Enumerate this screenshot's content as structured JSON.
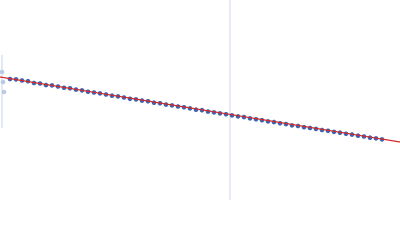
{
  "chart_data": {
    "type": "scatter",
    "xlim": [
      0,
      400
    ],
    "ylim": [
      0,
      200
    ],
    "series": [
      {
        "color": "#3a64b0",
        "x": [
          10,
          16,
          22,
          28,
          34,
          40,
          46,
          52,
          58,
          64,
          70,
          76,
          82,
          88,
          94,
          100,
          106,
          112,
          118,
          124,
          130,
          136,
          142,
          148,
          154,
          160,
          166,
          172,
          178,
          184,
          190,
          196,
          202,
          208,
          214,
          220,
          226,
          232,
          238,
          244,
          250,
          256,
          262,
          268,
          274,
          280,
          286,
          292,
          298,
          304,
          310,
          316,
          322,
          328,
          334,
          340,
          346,
          352,
          358,
          364,
          370,
          376,
          382
        ],
        "values": [
          121.0,
          120.6,
          119.5,
          118.8,
          117.0,
          116.5,
          114.9,
          114.6,
          113.5,
          112.2,
          111.7,
          110.4,
          109.6,
          108.2,
          107.5,
          106.6,
          105.5,
          104.3,
          103.6,
          102.5,
          101.2,
          100.6,
          99.4,
          98.7,
          97.3,
          96.7,
          95.4,
          94.6,
          93.5,
          92.7,
          91.6,
          90.3,
          89.8,
          88.4,
          87.6,
          86.6,
          85.7,
          84.6,
          83.6,
          82.9,
          81.6,
          80.7,
          79.8,
          78.6,
          77.9,
          76.7,
          75.9,
          74.6,
          74.0,
          72.8,
          72.0,
          71.1,
          70.0,
          69.2,
          68.1,
          67.3,
          66.2,
          65.4,
          64.3,
          63.5,
          62.3,
          61.6,
          60.6
        ]
      },
      {
        "color": "#b8cbe6",
        "x": [
          2,
          3,
          4
        ],
        "values": [
          128,
          118,
          108
        ]
      }
    ],
    "fit": {
      "color": "#d62728",
      "x": [
        0,
        400
      ],
      "values": [
        123,
        58
      ]
    }
  }
}
